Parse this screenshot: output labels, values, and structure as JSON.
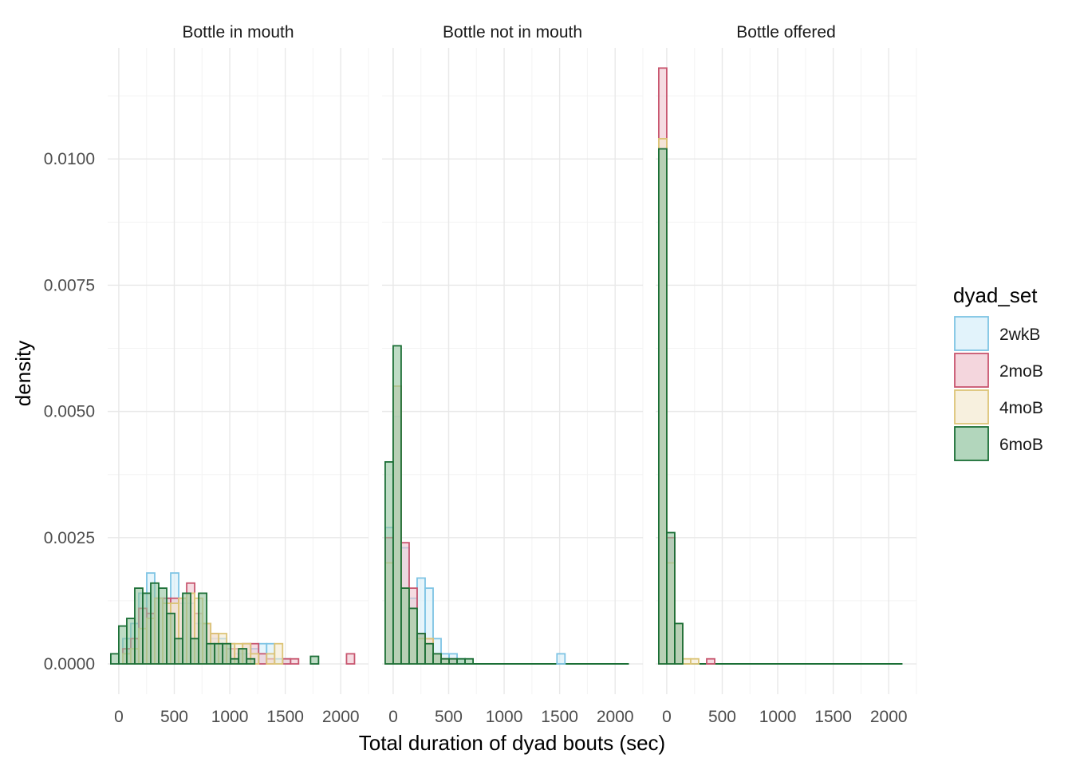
{
  "chart_data": {
    "type": "histogram",
    "xlabel": "Total duration of dyad bouts (sec)",
    "ylabel": "density",
    "xlim": [
      -100,
      2250
    ],
    "ylim": [
      -0.0006,
      0.0122
    ],
    "x_ticks": [
      0,
      500,
      1000,
      1500,
      2000
    ],
    "x_tick_labels": [
      "0",
      "500",
      "1000",
      "1500",
      "2000"
    ],
    "y_ticks": [
      0.0,
      0.0025,
      0.005,
      0.0075,
      0.01
    ],
    "y_tick_labels": [
      "0.0000",
      "0.0025",
      "0.0050",
      "0.0075",
      "0.0100"
    ],
    "bin_width": 72,
    "grid": true,
    "legend": {
      "title": "dyad_set",
      "position": "right",
      "entries": [
        "2wkB",
        "2moB",
        "4moB",
        "6moB"
      ]
    },
    "colors": {
      "2wkB": {
        "fill": "#d6eef9",
        "stroke": "#7ec4e4"
      },
      "2moB": {
        "fill": "#efc5ce",
        "stroke": "#c8566f"
      },
      "4moB": {
        "fill": "#f4ead0",
        "stroke": "#dcc477"
      },
      "6moB": {
        "fill": "#92c59f",
        "stroke": "#1a6e35"
      }
    },
    "panels": [
      {
        "title": "Bottle in mouth",
        "series": [
          {
            "name": "2wkB",
            "bins": [
              [
                72,
                0.0005
              ],
              [
                144,
                0.0008
              ],
              [
                216,
                0.0014
              ],
              [
                288,
                0.0018
              ],
              [
                360,
                0.0013
              ],
              [
                432,
                0.0013
              ],
              [
                504,
                0.0018
              ],
              [
                576,
                0.0012
              ],
              [
                648,
                0.0012
              ],
              [
                720,
                0.0008
              ],
              [
                792,
                0.0008
              ],
              [
                864,
                0.0005
              ],
              [
                936,
                0.0005
              ],
              [
                1008,
                0.0004
              ],
              [
                1080,
                0.0002
              ],
              [
                1152,
                0.0002
              ],
              [
                1224,
                0.0003
              ],
              [
                1296,
                0.0004
              ],
              [
                1368,
                0.0004
              ],
              [
                1440,
                0.0001
              ],
              [
                1512,
                0.0001
              ]
            ]
          },
          {
            "name": "2moB",
            "bins": [
              [
                72,
                0.0003
              ],
              [
                144,
                0.0005
              ],
              [
                216,
                0.0011
              ],
              [
                288,
                0.001
              ],
              [
                360,
                0.0013
              ],
              [
                432,
                0.0013
              ],
              [
                504,
                0.0013
              ],
              [
                576,
                0.0013
              ],
              [
                648,
                0.0016
              ],
              [
                720,
                0.001
              ],
              [
                792,
                0.0008
              ],
              [
                864,
                0.0006
              ],
              [
                936,
                0.0004
              ],
              [
                1008,
                0.0003
              ],
              [
                1080,
                0.0003
              ],
              [
                1152,
                0.0004
              ],
              [
                1224,
                0.0004
              ],
              [
                1296,
                0.0002
              ],
              [
                1368,
                0.0001
              ],
              [
                1512,
                0.0001
              ],
              [
                1584,
                0.0001
              ],
              [
                2088,
                0.0002
              ]
            ]
          },
          {
            "name": "4moB",
            "bins": [
              [
                72,
                0.0002
              ],
              [
                144,
                0.0003
              ],
              [
                216,
                0.0007
              ],
              [
                288,
                0.0009
              ],
              [
                360,
                0.0013
              ],
              [
                432,
                0.0012
              ],
              [
                504,
                0.0012
              ],
              [
                576,
                0.0013
              ],
              [
                648,
                0.0014
              ],
              [
                720,
                0.0013
              ],
              [
                792,
                0.0008
              ],
              [
                864,
                0.0006
              ],
              [
                936,
                0.0006
              ],
              [
                1008,
                0.0004
              ],
              [
                1080,
                0.0004
              ],
              [
                1152,
                0.0004
              ],
              [
                1224,
                0.0002
              ],
              [
                1368,
                0.0002
              ],
              [
                1440,
                0.0004
              ]
            ]
          },
          {
            "name": "6moB",
            "bins": [
              [
                -36,
                0.0002
              ],
              [
                36,
                0.00075
              ],
              [
                108,
                0.0009
              ],
              [
                180,
                0.0015
              ],
              [
                252,
                0.0014
              ],
              [
                324,
                0.0016
              ],
              [
                396,
                0.0015
              ],
              [
                468,
                0.001
              ],
              [
                540,
                0.0005
              ],
              [
                612,
                0.0014
              ],
              [
                684,
                0.0005
              ],
              [
                756,
                0.0014
              ],
              [
                828,
                0.0004
              ],
              [
                900,
                0.0004
              ],
              [
                972,
                0.0004
              ],
              [
                1044,
                0.0001
              ],
              [
                1116,
                0.0003
              ],
              [
                1188,
                0.0001
              ],
              [
                1764,
                0.00015
              ]
            ]
          }
        ]
      },
      {
        "title": "Bottle not in mouth",
        "series": [
          {
            "name": "2wkB",
            "bins": [
              [
                -36,
                0.0027
              ],
              [
                36,
                0.0049
              ],
              [
                108,
                0.0023
              ],
              [
                180,
                0.0013
              ],
              [
                252,
                0.0017
              ],
              [
                324,
                0.0015
              ],
              [
                396,
                0.0005
              ],
              [
                468,
                0.0002
              ],
              [
                540,
                0.0002
              ],
              [
                612,
                0.0001
              ],
              [
                1512,
                0.0002
              ]
            ]
          },
          {
            "name": "2moB",
            "bins": [
              [
                -36,
                0.0025
              ],
              [
                36,
                0.0055
              ],
              [
                108,
                0.0024
              ],
              [
                180,
                0.0015
              ],
              [
                252,
                0.0006
              ],
              [
                324,
                0.0005
              ],
              [
                396,
                0.0002
              ],
              [
                468,
                0.0001
              ],
              [
                540,
                0.0001
              ]
            ]
          },
          {
            "name": "4moB",
            "bins": [
              [
                -36,
                0.002
              ],
              [
                36,
                0.0055
              ],
              [
                108,
                0.0015
              ],
              [
                180,
                0.0011
              ],
              [
                252,
                0.0005
              ],
              [
                324,
                0.0005
              ],
              [
                396,
                0.0002
              ],
              [
                468,
                0.0001
              ]
            ]
          },
          {
            "name": "6moB",
            "bins": [
              [
                -36,
                0.004
              ],
              [
                36,
                0.0063
              ],
              [
                108,
                0.0015
              ],
              [
                180,
                0.0011
              ],
              [
                252,
                0.0006
              ],
              [
                324,
                0.0004
              ],
              [
                396,
                0.0002
              ],
              [
                468,
                0.0001
              ],
              [
                540,
                0.0001
              ],
              [
                612,
                0.0001
              ],
              [
                684,
                0.0001
              ]
            ]
          }
        ],
        "baseline": [
          -36,
          2124
        ]
      },
      {
        "title": "Bottle offered",
        "series": [
          {
            "name": "2wkB",
            "bins": [
              [
                -36,
                0.0102
              ],
              [
                36,
                0.0025
              ],
              [
                108,
                0.0008
              ]
            ]
          },
          {
            "name": "2moB",
            "bins": [
              [
                -36,
                0.0118
              ],
              [
                36,
                0.0025
              ],
              [
                108,
                0.0008
              ],
              [
                396,
                0.0001
              ]
            ]
          },
          {
            "name": "4moB",
            "bins": [
              [
                -36,
                0.0104
              ],
              [
                36,
                0.002
              ],
              [
                108,
                0.0008
              ],
              [
                180,
                0.0001
              ],
              [
                252,
                0.0001
              ]
            ]
          },
          {
            "name": "6moB",
            "bins": [
              [
                -36,
                0.0102
              ],
              [
                36,
                0.0026
              ],
              [
                108,
                0.0008
              ]
            ]
          }
        ],
        "baseline": [
          -36,
          2124
        ]
      }
    ]
  }
}
